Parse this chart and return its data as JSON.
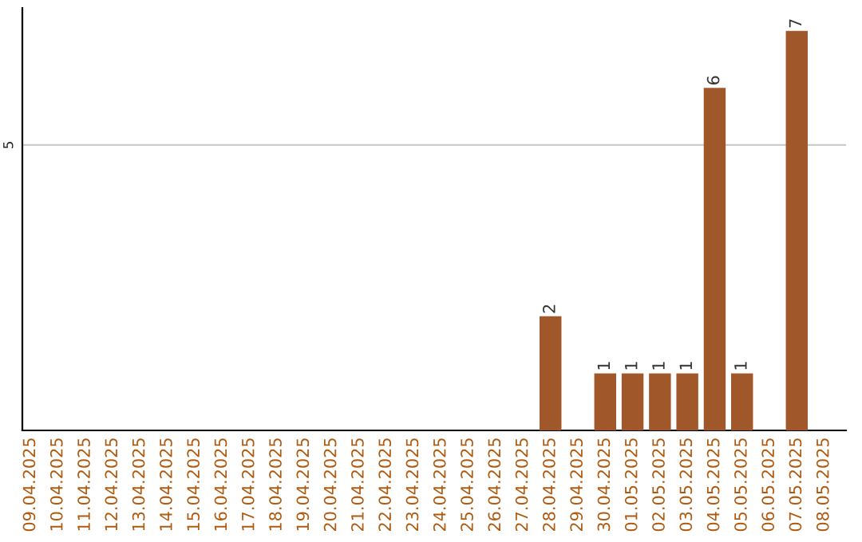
{
  "chart_data": {
    "type": "bar",
    "categories": [
      "09.04.2025",
      "10.04.2025",
      "11.04.2025",
      "12.04.2025",
      "13.04.2025",
      "14.04.2025",
      "15.04.2025",
      "16.04.2025",
      "17.04.2025",
      "18.04.2025",
      "19.04.2025",
      "20.04.2025",
      "21.04.2025",
      "22.04.2025",
      "23.04.2025",
      "24.04.2025",
      "25.04.2025",
      "26.04.2025",
      "27.04.2025",
      "28.04.2025",
      "29.04.2025",
      "30.04.2025",
      "01.05.2025",
      "02.05.2025",
      "03.05.2025",
      "04.05.2025",
      "05.05.2025",
      "06.05.2025",
      "07.05.2025",
      "08.05.2025"
    ],
    "values": [
      null,
      null,
      null,
      null,
      null,
      null,
      null,
      null,
      null,
      null,
      null,
      null,
      null,
      null,
      null,
      null,
      null,
      null,
      null,
      2,
      null,
      1,
      1,
      1,
      1,
      6,
      1,
      null,
      7,
      null
    ],
    "data_labels": true,
    "color": "#a0582a",
    "ylim": [
      0,
      7.4
    ],
    "ref_lines": [
      {
        "axis": "y",
        "value": 5,
        "label": "5",
        "color": "#cccccc"
      }
    ]
  }
}
